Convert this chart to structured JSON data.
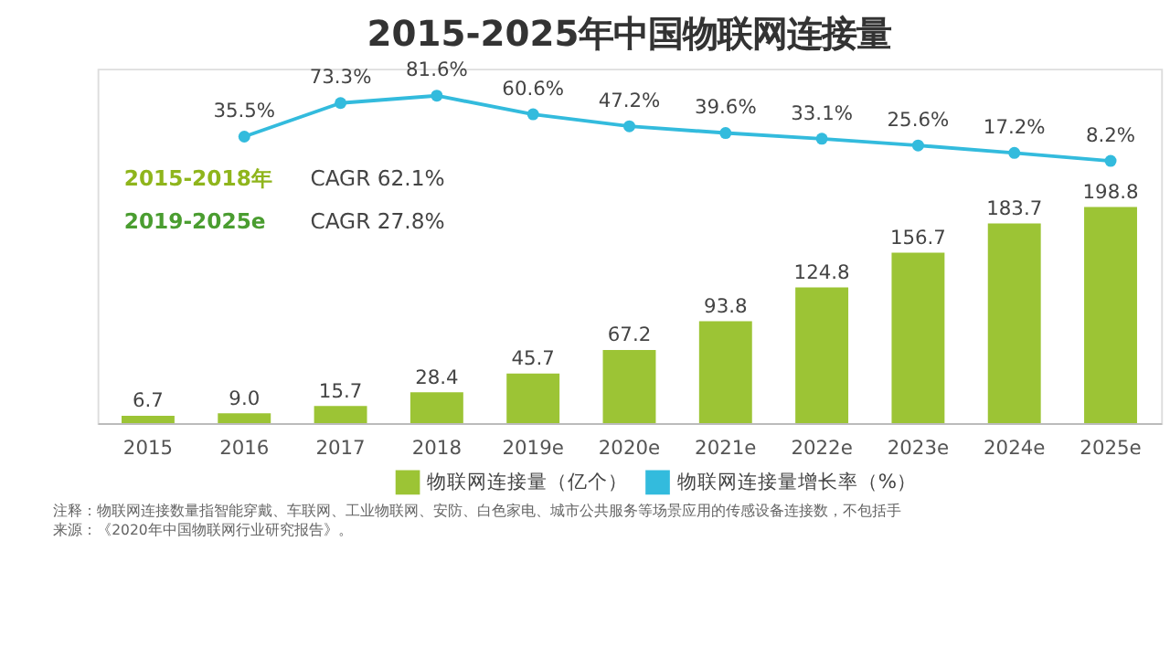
{
  "chart_data": {
    "type": "bar",
    "title": "2015-2025年中国物联网连接量",
    "categories": [
      "2015",
      "2016",
      "2017",
      "2018",
      "2019e",
      "2020e",
      "2021e",
      "2022e",
      "2023e",
      "2024e",
      "2025e"
    ],
    "series": [
      {
        "name": "物联网连接量（亿个）",
        "color": "#9cc435",
        "values": [
          6.7,
          9.0,
          15.7,
          28.4,
          45.7,
          67.2,
          93.8,
          124.8,
          156.7,
          183.7,
          198.8
        ],
        "value_labels": [
          "6.7",
          "9.0",
          "15.7",
          "28.4",
          "45.7",
          "67.2",
          "93.8",
          "124.8",
          "156.7",
          "183.7",
          "198.8"
        ]
      },
      {
        "name": "物联网连接量增长率（%）",
        "type": "line",
        "axis": "y2",
        "color": "#33bbdd",
        "marker": "circle",
        "values": [
          null,
          35.5,
          73.3,
          81.6,
          60.6,
          47.2,
          39.6,
          33.1,
          25.6,
          17.2,
          8.2
        ],
        "value_labels": [
          null,
          "35.5%",
          "73.3%",
          "81.6%",
          "60.6%",
          "47.2%",
          "39.6%",
          "33.1%",
          "25.6%",
          "17.2%",
          "8.2%"
        ]
      }
    ],
    "ylim": [
      0,
      326
    ],
    "y2lim": [
      -287,
      112
    ],
    "legend": "bottom",
    "grid": false,
    "annotations": [
      "2015-2018年",
      "CAGR 62.1%",
      "2019-2025e",
      "CAGR 27.8%",
      "注释：物联网连接数量指智能穿戴、车联网、工业物联网、安防、白色家电、城市公共服务等场景应用的传感设备连接数，不包括手",
      "来源：《2020年中国物联网行业研究报告》。"
    ]
  }
}
